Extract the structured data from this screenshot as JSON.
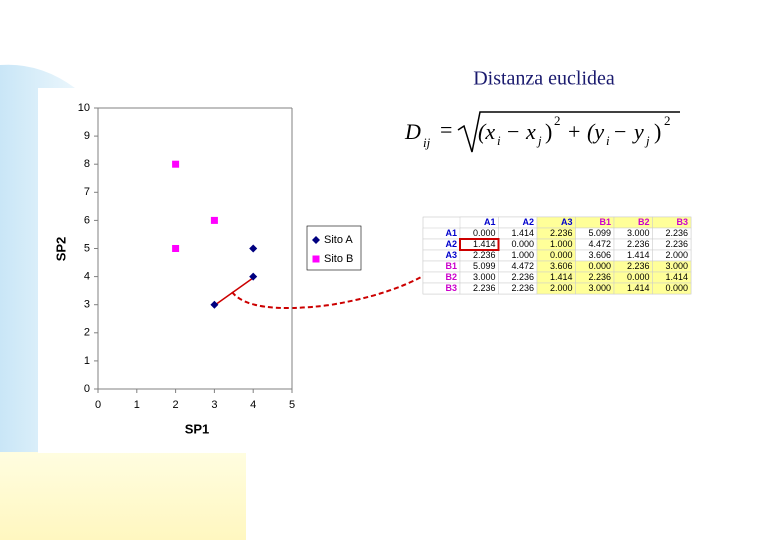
{
  "title": "Distanza euclidea",
  "formula": {
    "parts": [
      "D",
      "ij",
      "=",
      "(x",
      "i",
      "−",
      "x",
      "j",
      ")",
      "2",
      "+",
      "(y",
      "i",
      "−",
      "y",
      "j",
      ")",
      "2"
    ]
  },
  "chart_data": {
    "type": "scatter",
    "x_label": "SP1",
    "y_label": "SP2",
    "series": [
      {
        "name": "Sito A",
        "color": "#000080",
        "marker": "diamond",
        "x": [
          3,
          4,
          4
        ],
        "values": [
          3,
          4,
          5
        ]
      },
      {
        "name": "Sito B",
        "color": "#ff00ff",
        "marker": "square",
        "x": [
          2,
          3,
          2
        ],
        "values": [
          8,
          6,
          5
        ]
      }
    ],
    "xlim": [
      0,
      5
    ],
    "xticks": [
      0,
      1,
      2,
      3,
      4,
      5
    ],
    "ylim": [
      0,
      10
    ],
    "yticks": [
      0,
      1,
      2,
      3,
      4,
      5,
      6,
      7,
      8,
      9,
      10
    ],
    "legend": "right"
  },
  "table": {
    "columns": [
      "A1",
      "A2",
      "A3",
      "B1",
      "B2",
      "B3"
    ],
    "rows": [
      {
        "label": "A1",
        "cells": [
          "0.000",
          "1.414",
          "2.236",
          "5.099",
          "3.000",
          "2.236"
        ]
      },
      {
        "label": "A2",
        "cells": [
          "1.414",
          "0.000",
          "1.000",
          "4.472",
          "2.236",
          "2.236"
        ]
      },
      {
        "label": "A3",
        "cells": [
          "2.236",
          "1.000",
          "0.000",
          "3.606",
          "1.414",
          "2.000"
        ]
      },
      {
        "label": "B1",
        "cells": [
          "5.099",
          "4.472",
          "3.606",
          "0.000",
          "2.236",
          "3.000"
        ]
      },
      {
        "label": "B2",
        "cells": [
          "3.000",
          "2.236",
          "1.414",
          "2.236",
          "0.000",
          "1.414"
        ]
      },
      {
        "label": "B3",
        "cells": [
          "2.236",
          "2.236",
          "2.000",
          "3.000",
          "1.414",
          "0.000"
        ]
      }
    ]
  }
}
